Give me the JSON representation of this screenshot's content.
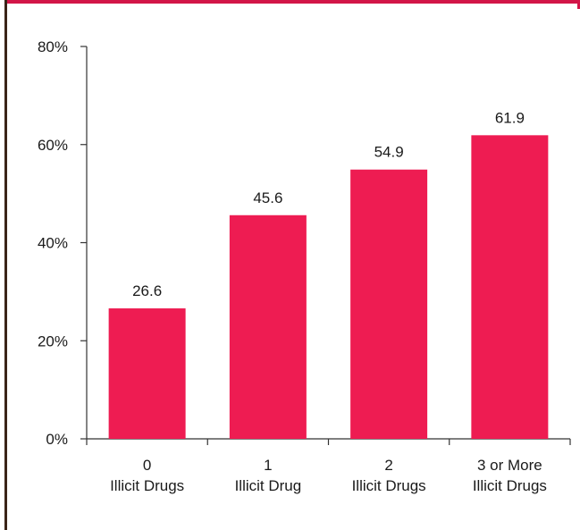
{
  "colors": {
    "bar": "#EE1C52",
    "frame": "#D21548",
    "left_border": "#3a2418",
    "axis": "#333333"
  },
  "chart_data": {
    "type": "bar",
    "title": "",
    "xlabel": "",
    "ylabel": "",
    "categories": [
      [
        "0",
        "Illicit Drugs"
      ],
      [
        "1",
        "Illicit Drug"
      ],
      [
        "2",
        "Illicit Drugs"
      ],
      [
        "3 or More",
        "Illicit Drugs"
      ]
    ],
    "values": [
      26.6,
      45.6,
      54.9,
      61.9
    ],
    "data_labels": [
      "26.6",
      "45.6",
      "54.9",
      "61.9"
    ],
    "ylim": [
      0,
      80
    ],
    "yticks": [
      0,
      20,
      40,
      60,
      80
    ],
    "ytick_labels": [
      "0%",
      "20%",
      "40%",
      "60%",
      "80%"
    ],
    "grid": false,
    "legend": "none"
  }
}
